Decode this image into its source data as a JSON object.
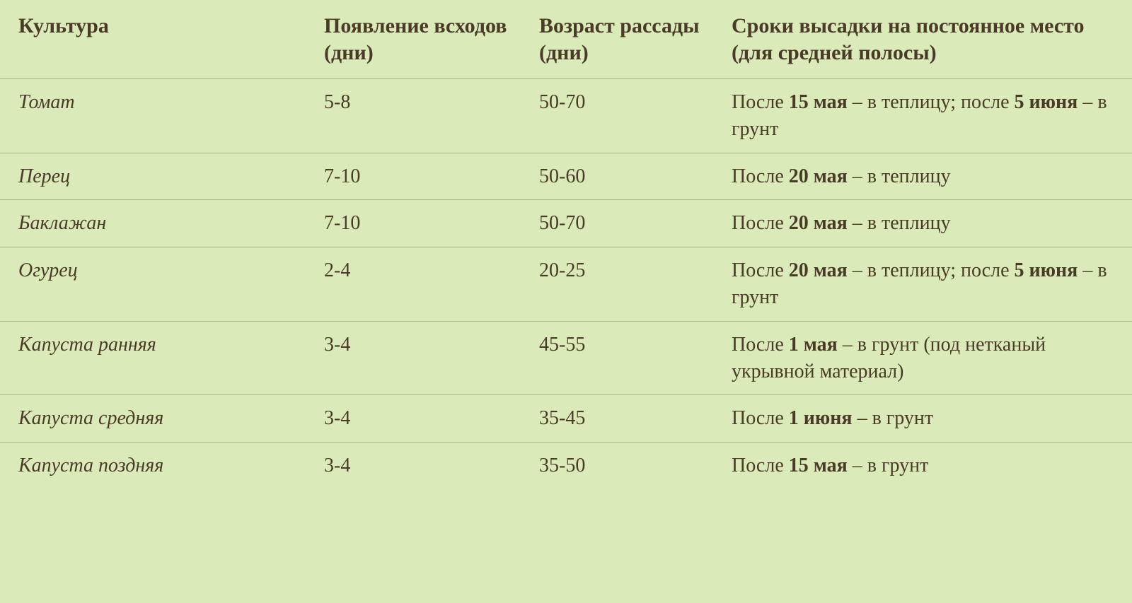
{
  "table": {
    "background_color": "#dbeab9",
    "border_color": "#a8b88a",
    "text_color": "#4a3a28",
    "header_fontsize": 30,
    "body_fontsize": 28,
    "font_family": "Georgia, 'Times New Roman', serif",
    "column_widths_pct": [
      27,
      19,
      17,
      37
    ],
    "columns": [
      "Культура",
      "Появление всходов (дни)",
      "Возраст рассады (дни)",
      "Сроки высадки на постоянное место (для средней полосы)"
    ],
    "rows": [
      {
        "culture": "Томат",
        "emergence": "5-8",
        "age": "50-70",
        "planting_parts": [
          {
            "t": "После ",
            "b": false
          },
          {
            "t": "15 мая",
            "b": true
          },
          {
            "t": " – в теплицу; после ",
            "b": false
          },
          {
            "t": "5 июня",
            "b": true
          },
          {
            "t": " – в грунт",
            "b": false
          }
        ]
      },
      {
        "culture": "Перец",
        "emergence": "7-10",
        "age": "50-60",
        "planting_parts": [
          {
            "t": "После ",
            "b": false
          },
          {
            "t": "20 мая",
            "b": true
          },
          {
            "t": " – в теплицу",
            "b": false
          }
        ]
      },
      {
        "culture": "Баклажан",
        "emergence": "7-10",
        "age": "50-70",
        "planting_parts": [
          {
            "t": "После ",
            "b": false
          },
          {
            "t": "20 мая",
            "b": true
          },
          {
            "t": " – в теплицу",
            "b": false
          }
        ]
      },
      {
        "culture": "Огурец",
        "emergence": "2-4",
        "age": "20-25",
        "planting_parts": [
          {
            "t": "После ",
            "b": false
          },
          {
            "t": "20 мая",
            "b": true
          },
          {
            "t": " – в теплицу; после ",
            "b": false
          },
          {
            "t": "5 июня",
            "b": true
          },
          {
            "t": " – в грунт",
            "b": false
          }
        ]
      },
      {
        "culture": "Капуста ранняя",
        "emergence": "3-4",
        "age": "45-55",
        "planting_parts": [
          {
            "t": "После ",
            "b": false
          },
          {
            "t": "1 мая",
            "b": true
          },
          {
            "t": " – в грунт (под нетканый укрывной материал)",
            "b": false
          }
        ]
      },
      {
        "culture": "Капуста средняя",
        "emergence": "3-4",
        "age": "35-45",
        "planting_parts": [
          {
            "t": "После ",
            "b": false
          },
          {
            "t": "1 июня",
            "b": true
          },
          {
            "t": " – в грунт",
            "b": false
          }
        ]
      },
      {
        "culture": "Капуста поздняя",
        "emergence": "3-4",
        "age": "35-50",
        "planting_parts": [
          {
            "t": "После ",
            "b": false
          },
          {
            "t": "15 мая",
            "b": true
          },
          {
            "t": " – в грунт",
            "b": false
          }
        ]
      }
    ]
  }
}
